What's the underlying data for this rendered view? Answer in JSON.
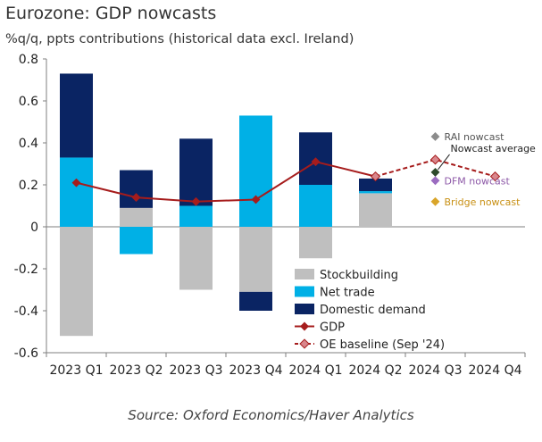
{
  "title": "Eurozone: GDP nowcasts",
  "subtitle": "%q/q, ppts contributions (historical data excl. Ireland)",
  "source": "Source: Oxford Economics/Haver Analytics",
  "colors": {
    "stockbuilding": "#bfbfbf",
    "net_trade": "#00b0e6",
    "domestic_demand": "#0a2463",
    "gdp": "#a61c1c",
    "oe_baseline": "#a61c1c",
    "oe_baseline_marker": "#d9868c",
    "rai": "#808080",
    "nowcast_average": "#2d4a2b",
    "dfm": "#8e5aa8",
    "bridge": "#d4a017"
  },
  "chart_data": {
    "type": "bar",
    "categories": [
      "2023 Q1",
      "2023 Q2",
      "2023 Q3",
      "2023 Q4",
      "2024 Q1",
      "2024 Q2",
      "2024 Q3",
      "2024 Q4"
    ],
    "ylim": [
      -0.6,
      0.8
    ],
    "yticks": [
      "-0.6",
      "-0.4",
      "-0.2",
      "0",
      "0.2",
      "0.4",
      "0.6",
      "0.8"
    ],
    "series": [
      {
        "name": "Stockbuilding",
        "key": "stockbuilding",
        "kind": "bar",
        "values": [
          -0.52,
          0.09,
          -0.3,
          -0.31,
          -0.15,
          0.16,
          null,
          null
        ]
      },
      {
        "name": "Net trade",
        "key": "net_trade",
        "kind": "bar",
        "values": [
          0.33,
          -0.13,
          0.1,
          0.53,
          0.2,
          0.01,
          null,
          null
        ]
      },
      {
        "name": "Domestic demand",
        "key": "domestic_demand",
        "kind": "bar",
        "values": [
          0.4,
          0.18,
          0.32,
          -0.09,
          0.25,
          0.06,
          null,
          null
        ]
      },
      {
        "name": "GDP",
        "key": "gdp",
        "kind": "line",
        "values": [
          0.21,
          0.14,
          0.12,
          0.13,
          0.31,
          0.24,
          null,
          null
        ]
      },
      {
        "name": "OE baseline (Sep '24)",
        "key": "oe_baseline",
        "kind": "dashed-line",
        "values": [
          null,
          null,
          null,
          null,
          null,
          0.24,
          0.32,
          0.24
        ]
      }
    ],
    "nowcasts": [
      {
        "name": "RAI nowcast",
        "key": "rai",
        "category": "2024 Q3",
        "value": 0.43
      },
      {
        "name": "Nowcast average",
        "key": "nowcast_average",
        "category": "2024 Q3",
        "value": 0.26
      },
      {
        "name": "DFM nowcast",
        "key": "dfm",
        "category": "2024 Q3",
        "value": 0.22
      },
      {
        "name": "Bridge nowcast",
        "key": "bridge",
        "category": "2024 Q3",
        "value": 0.12
      }
    ],
    "legend_order": [
      "Stockbuilding",
      "Net trade",
      "Domestic demand",
      "GDP",
      "OE baseline (Sep '24)"
    ],
    "legend_position": "bottom-center"
  }
}
